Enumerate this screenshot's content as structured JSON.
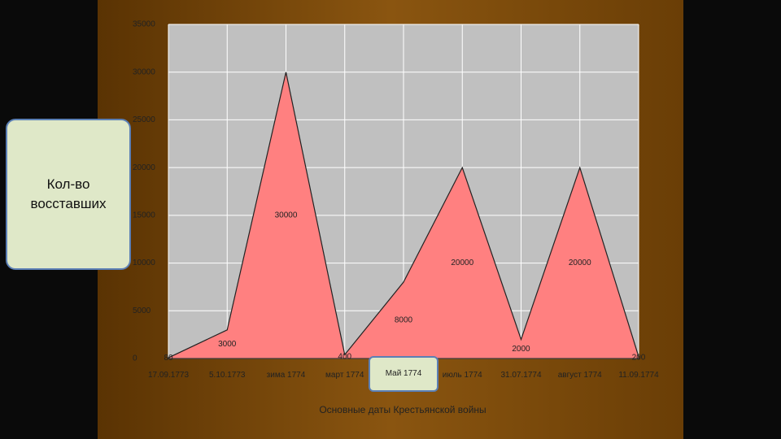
{
  "chart_data": {
    "type": "area",
    "categories": [
      "17.09.1773",
      "5.10.1773",
      "зима 1774",
      "март 1774",
      "Май 1774",
      "июль 1774",
      "31.07.1774",
      "август 1774",
      "11.09.1774"
    ],
    "values": [
      80,
      3000,
      30000,
      400,
      8000,
      20000,
      2000,
      20000,
      200
    ],
    "color": "#ff8080",
    "ylim": [
      0,
      35000
    ],
    "yticks": [
      0,
      5000,
      10000,
      15000,
      20000,
      25000,
      30000,
      35000
    ],
    "grid": true,
    "y_label": "Кол-во восставших",
    "x_label": "Основные даты Крестьянской войны"
  }
}
